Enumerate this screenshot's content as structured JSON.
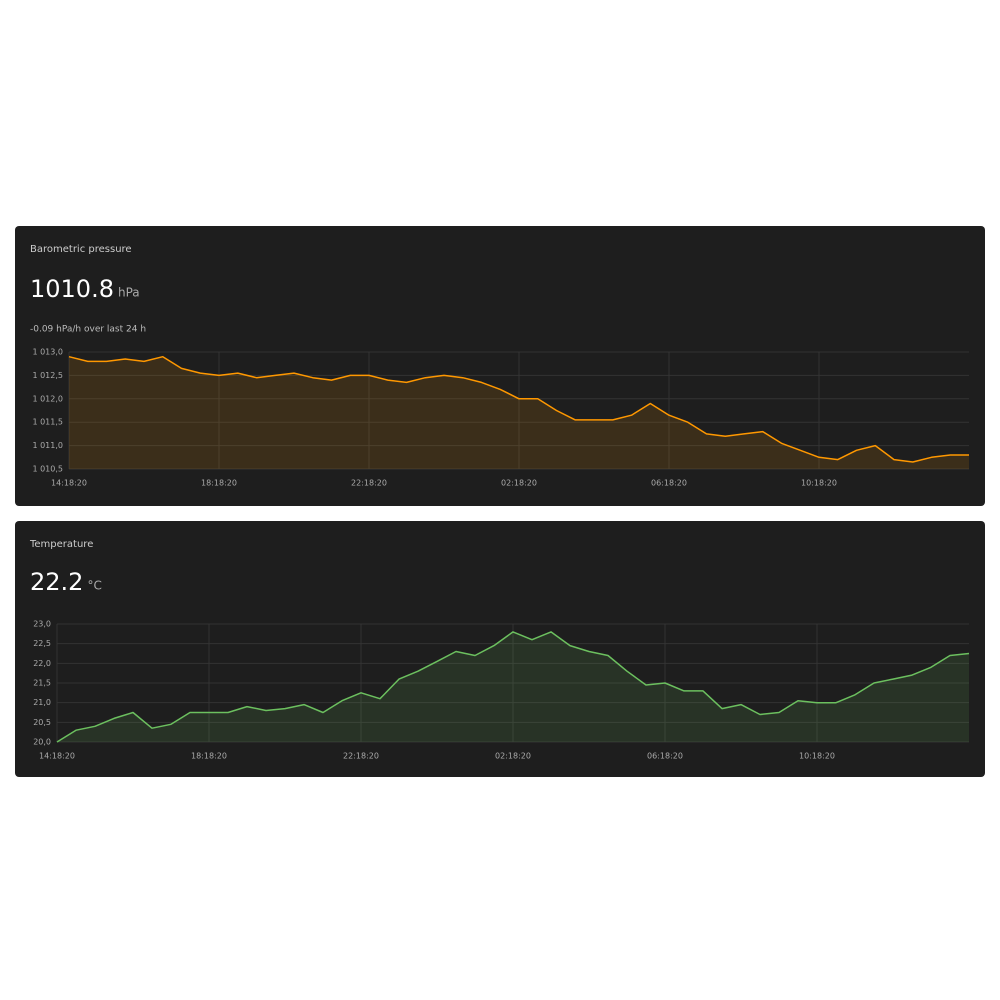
{
  "chart_data": [
    {
      "type": "line",
      "title": "Barometric pressure",
      "current": 1010.8,
      "unit": "hPa",
      "subtitle": "-0.09 hPa/h over last 24 h",
      "color": "#ff9800",
      "grid": true,
      "categories": [
        "14:18:20",
        "14:48:20",
        "15:18:20",
        "15:48:20",
        "16:18:20",
        "16:48:20",
        "17:18:20",
        "17:48:20",
        "18:18:20",
        "18:48:20",
        "19:18:20",
        "19:48:20",
        "20:18:20",
        "20:48:20",
        "21:18:20",
        "21:48:20",
        "22:18:20",
        "22:48:20",
        "23:18:20",
        "23:48:20",
        "00:18:20",
        "00:48:20",
        "01:18:20",
        "01:48:20",
        "02:18:20",
        "02:48:20",
        "03:18:20",
        "03:48:20",
        "04:18:20",
        "04:48:20",
        "05:18:20",
        "05:48:20",
        "06:18:20",
        "06:48:20",
        "07:18:20",
        "07:48:20",
        "08:18:20",
        "08:48:20",
        "09:18:20",
        "09:48:20",
        "10:18:20",
        "10:48:20",
        "11:18:20",
        "11:48:20",
        "12:18:20",
        "12:48:20",
        "13:18:20",
        "13:48:20",
        "14:18:20"
      ],
      "values": [
        1012.9,
        1012.8,
        1012.8,
        1012.85,
        1012.8,
        1012.9,
        1012.65,
        1012.55,
        1012.5,
        1012.55,
        1012.45,
        1012.5,
        1012.55,
        1012.45,
        1012.4,
        1012.5,
        1012.5,
        1012.4,
        1012.35,
        1012.45,
        1012.5,
        1012.45,
        1012.35,
        1012.2,
        1012.0,
        1012.0,
        1011.75,
        1011.55,
        1011.55,
        1011.55,
        1011.65,
        1011.9,
        1011.65,
        1011.5,
        1011.25,
        1011.2,
        1011.25,
        1011.3,
        1011.05,
        1010.9,
        1010.75,
        1010.7,
        1010.9,
        1011.0,
        1010.7,
        1010.65,
        1010.75,
        1010.8,
        1010.8
      ],
      "ylim": [
        1010.5,
        1013.0
      ],
      "yticks": [
        {
          "value": 1010.5,
          "label": "1 010,5"
        },
        {
          "value": 1011,
          "label": "1 011,0"
        },
        {
          "value": 1011.5,
          "label": "1 011,5"
        },
        {
          "value": 1012,
          "label": "1 012,0"
        },
        {
          "value": 1012.5,
          "label": "1 012,5"
        },
        {
          "value": 1013,
          "label": "1 013,0"
        }
      ],
      "xticks": [
        "14:18:20",
        "18:18:20",
        "22:18:20",
        "02:18:20",
        "06:18:20",
        "10:18:20"
      ]
    },
    {
      "type": "line",
      "title": "Temperature",
      "current": 22.2,
      "unit": "°C",
      "color": "#6cc05f",
      "grid": true,
      "categories": [
        "14:18:20",
        "14:48:20",
        "15:18:20",
        "15:48:20",
        "16:18:20",
        "16:48:20",
        "17:18:20",
        "17:48:20",
        "18:18:20",
        "18:48:20",
        "19:18:20",
        "19:48:20",
        "20:18:20",
        "20:48:20",
        "21:18:20",
        "21:48:20",
        "22:18:20",
        "22:48:20",
        "23:18:20",
        "23:48:20",
        "00:18:20",
        "00:48:20",
        "01:18:20",
        "01:48:20",
        "02:18:20",
        "02:48:20",
        "03:18:20",
        "03:48:20",
        "04:18:20",
        "04:48:20",
        "05:18:20",
        "05:48:20",
        "06:18:20",
        "06:48:20",
        "07:18:20",
        "07:48:20",
        "08:18:20",
        "08:48:20",
        "09:18:20",
        "09:48:20",
        "10:18:20",
        "10:48:20",
        "11:18:20",
        "11:48:20",
        "12:18:20",
        "12:48:20",
        "13:18:20",
        "13:48:20",
        "14:18:20"
      ],
      "values": [
        20.0,
        20.3,
        20.4,
        20.6,
        20.75,
        20.35,
        20.45,
        20.75,
        20.75,
        20.75,
        20.9,
        20.8,
        20.85,
        20.95,
        20.75,
        21.05,
        21.25,
        21.1,
        21.6,
        21.8,
        22.05,
        22.3,
        22.2,
        22.45,
        22.8,
        22.6,
        22.8,
        22.45,
        22.3,
        22.2,
        21.8,
        21.45,
        21.5,
        21.3,
        21.3,
        20.85,
        20.95,
        20.7,
        20.75,
        21.05,
        21.0,
        21.0,
        21.2,
        21.5,
        21.6,
        21.7,
        21.9,
        22.2,
        22.25
      ],
      "ylim": [
        20.0,
        23.0
      ],
      "yticks": [
        {
          "value": 20,
          "label": "20,0"
        },
        {
          "value": 20.5,
          "label": "20,5"
        },
        {
          "value": 21,
          "label": "21,0"
        },
        {
          "value": 21.5,
          "label": "21,5"
        },
        {
          "value": 22,
          "label": "22,0"
        },
        {
          "value": 22.5,
          "label": "22,5"
        },
        {
          "value": 23,
          "label": "23,0"
        }
      ],
      "xticks": [
        "14:18:20",
        "18:18:20",
        "22:18:20",
        "02:18:20",
        "06:18:20",
        "10:18:20"
      ]
    }
  ]
}
